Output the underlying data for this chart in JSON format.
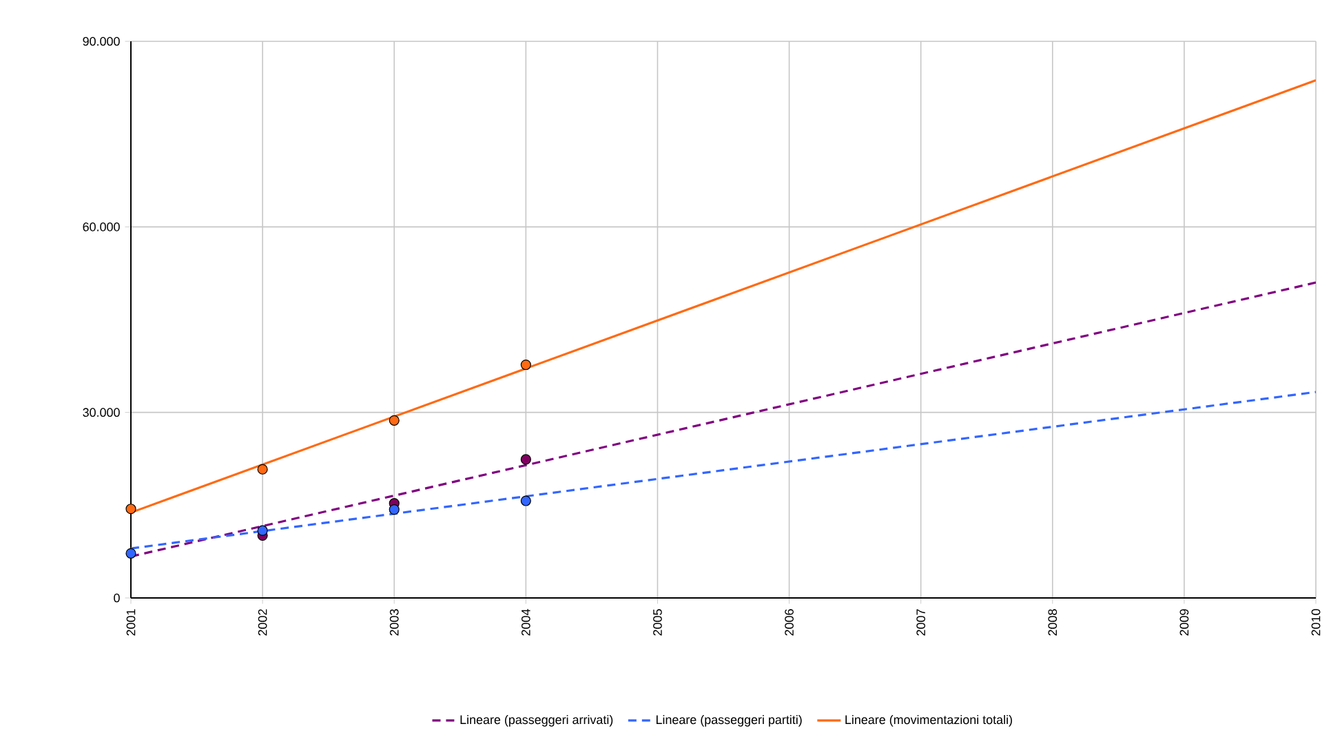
{
  "chart_data": {
    "type": "line",
    "x": [
      2001,
      2010
    ],
    "series": [
      {
        "name": "Lineare (passeggeri arrivati)",
        "color": "#800080",
        "values": [
          6700,
          51000
        ],
        "line_style": "dashed",
        "marker": "none"
      },
      {
        "name": "Lineare (passeggeri partiti)",
        "color": "#3366ff",
        "values": [
          8000,
          33300
        ],
        "line_style": "dashed",
        "marker": "none"
      },
      {
        "name": "Lineare (movimentazioni totali)",
        "color": "#ff6a13",
        "values": [
          13800,
          83700
        ],
        "line_style": "solid",
        "marker": "none"
      },
      {
        "type": "scatter",
        "color": "#800060",
        "x": [
          2002,
          2003,
          2004
        ],
        "values": [
          10100,
          15300,
          22400
        ],
        "marker": "circle"
      },
      {
        "type": "scatter",
        "color": "#3366ff",
        "x": [
          2001,
          2002,
          2003,
          2004
        ],
        "values": [
          7200,
          10900,
          14300,
          15700
        ],
        "marker": "circle"
      },
      {
        "type": "scatter",
        "color": "#ff6a13",
        "x": [
          2001,
          2002,
          2003,
          2004
        ],
        "values": [
          14400,
          20800,
          28700,
          37700
        ],
        "marker": "circle"
      }
    ],
    "xlim": [
      2001,
      2010
    ],
    "xticks": [
      2001,
      2002,
      2003,
      2004,
      2005,
      2006,
      2007,
      2008,
      2009,
      2010
    ],
    "ylim": [
      0,
      90000
    ],
    "yticks": [
      0,
      {
        "value": 30000,
        "label": "30.000"
      },
      {
        "value": 60000,
        "label": "60.000"
      },
      {
        "value": 90000,
        "label": "90.000"
      }
    ],
    "grid": true,
    "legend": "bottom"
  }
}
